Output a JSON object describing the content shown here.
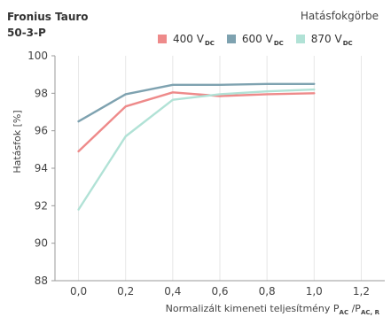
{
  "title_line1": "Fronius Tauro",
  "title_line2": "50-3-P",
  "subtitle": "Hatásfokgörbe",
  "chart_data": {
    "type": "line",
    "title": "Fronius Tauro 50-3-P",
    "subtitle": "Hatásfokgörbe",
    "ylabel": "Hatásfok [%]",
    "xlabel_parts": {
      "main": "Normalizált kimeneti teljesítmény P",
      "sub1": "AC",
      "mid": " /P",
      "sub2": "AC, R"
    },
    "xlim": [
      -0.1,
      1.3
    ],
    "ylim": [
      88,
      100
    ],
    "xticks": [
      0.0,
      0.2,
      0.4,
      0.6,
      0.8,
      1.0,
      1.2
    ],
    "xtick_labels": [
      "0,0",
      "0,2",
      "0,4",
      "0,6",
      "0,8",
      "1,0",
      "1,2"
    ],
    "yticks": [
      88,
      90,
      92,
      94,
      96,
      98,
      100
    ],
    "ytick_labels": [
      "88",
      "90",
      "92",
      "94",
      "96",
      "98",
      "100"
    ],
    "grid": "vertical",
    "legend_position": "top-right",
    "series": [
      {
        "name": "400 V",
        "name_sub": "DC",
        "color": "#ee8a8a",
        "x": [
          0.0,
          0.2,
          0.4,
          0.6,
          0.8,
          1.0
        ],
        "y": [
          94.9,
          97.3,
          98.05,
          97.85,
          97.95,
          98.0
        ]
      },
      {
        "name": "600 V",
        "name_sub": "DC",
        "color": "#7ea2b0",
        "x": [
          0.0,
          0.2,
          0.4,
          0.6,
          0.8,
          1.0
        ],
        "y": [
          96.5,
          97.95,
          98.45,
          98.45,
          98.5,
          98.5
        ]
      },
      {
        "name": "870 V",
        "name_sub": "DC",
        "color": "#b1e2d6",
        "x": [
          0.0,
          0.2,
          0.4,
          0.6,
          0.8,
          1.0
        ],
        "y": [
          91.8,
          95.7,
          97.65,
          97.95,
          98.1,
          98.2
        ]
      }
    ]
  }
}
